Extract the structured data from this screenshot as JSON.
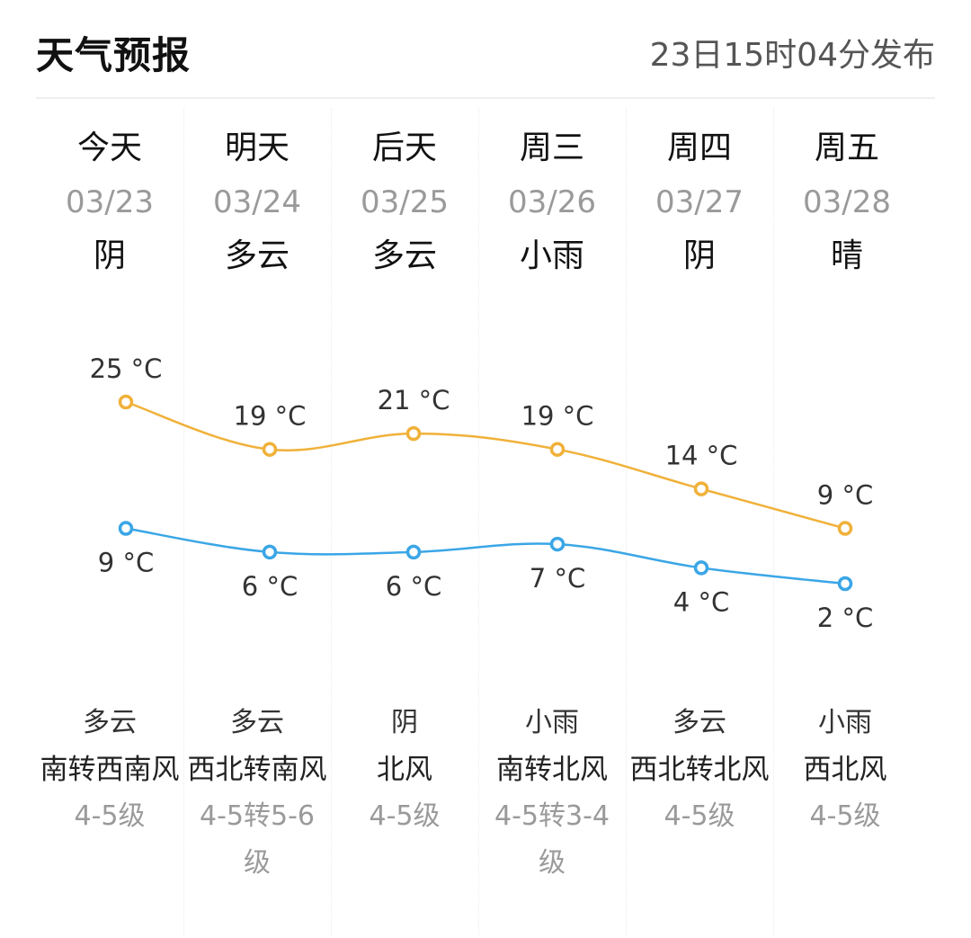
{
  "header": {
    "title": "天气预报",
    "publish_time": "23日15时04分发布"
  },
  "colors": {
    "high_line": "#f0b13a",
    "low_line": "#3aa6e6",
    "muted_text": "#9a9a9a"
  },
  "days": [
    {
      "name": "今天",
      "date": "03/23",
      "day_weather": "阴",
      "high": "25 °C",
      "low": "9 °C",
      "night_weather": "多云",
      "wind": "南转西南风",
      "level": "4-5级"
    },
    {
      "name": "明天",
      "date": "03/24",
      "day_weather": "多云",
      "high": "19 °C",
      "low": "6 °C",
      "night_weather": "多云",
      "wind": "西北转南风",
      "level": "4-5转5-6级"
    },
    {
      "name": "后天",
      "date": "03/25",
      "day_weather": "多云",
      "high": "21 °C",
      "low": "6 °C",
      "night_weather": "阴",
      "wind": "北风",
      "level": "4-5级"
    },
    {
      "name": "周三",
      "date": "03/26",
      "day_weather": "小雨",
      "high": "19 °C",
      "low": "7 °C",
      "night_weather": "小雨",
      "wind": "南转北风",
      "level": "4-5转3-4级"
    },
    {
      "name": "周四",
      "date": "03/27",
      "day_weather": "阴",
      "high": "14 °C",
      "low": "4 °C",
      "night_weather": "多云",
      "wind": "西北转北风",
      "level": "4-5级"
    },
    {
      "name": "周五",
      "date": "03/28",
      "day_weather": "晴",
      "high": "9 °C",
      "low": "2 °C",
      "night_weather": "小雨",
      "wind": "西北风",
      "level": "4-5级"
    }
  ],
  "chart_data": {
    "type": "line",
    "categories": [
      "03/23",
      "03/24",
      "03/25",
      "03/26",
      "03/27",
      "03/28"
    ],
    "series": [
      {
        "values": [
          25,
          19,
          21,
          19,
          14,
          9
        ]
      },
      {
        "values": [
          9,
          6,
          6,
          7,
          4,
          2
        ]
      }
    ],
    "unit": "°C"
  }
}
